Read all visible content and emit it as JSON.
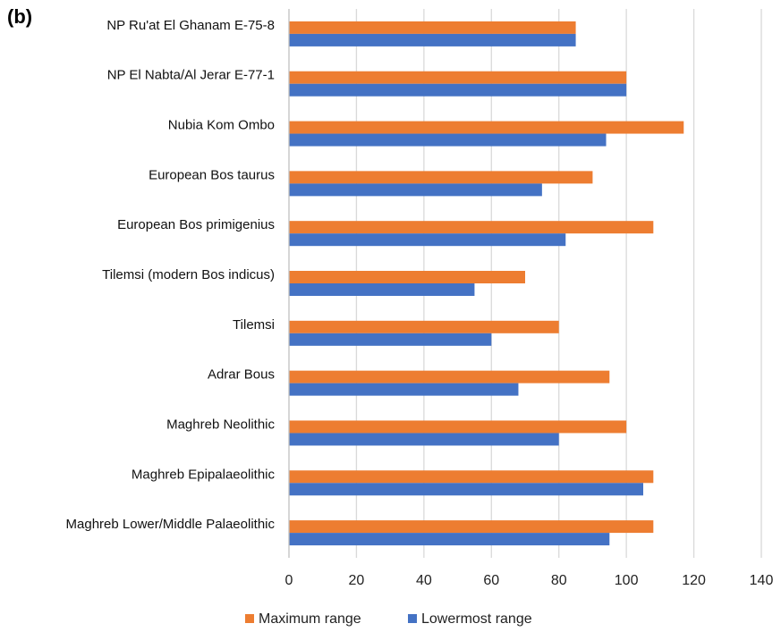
{
  "panel_label": "(b)",
  "colors": {
    "maximum": "#ED7D31",
    "lowermost": "#4472C4",
    "grid": "#d9d9d9",
    "axis": "#bfbfbf"
  },
  "chart_data": {
    "type": "bar",
    "orientation": "horizontal",
    "categories": [
      "NP Ru'at El Ghanam E-75-8",
      "NP El Nabta/Al Jerar E-77-1",
      "Nubia Kom Ombo",
      "European Bos taurus",
      "European Bos primigenius",
      "Tilemsi (modern Bos indicus)",
      "Tilemsi",
      "Adrar Bous",
      "Maghreb Neolithic",
      "Maghreb Epipalaeolithic",
      "Maghreb Lower/Middle Palaeolithic"
    ],
    "series": [
      {
        "name": "Maximum range",
        "values": [
          85,
          100,
          117,
          90,
          108,
          70,
          80,
          95,
          100,
          108,
          108
        ]
      },
      {
        "name": "Lowermost range",
        "values": [
          85,
          100,
          94,
          75,
          82,
          55,
          60,
          68,
          80,
          105,
          95
        ]
      }
    ],
    "xlim": [
      0,
      140
    ],
    "xticks": [
      0,
      20,
      40,
      60,
      80,
      100,
      120,
      140
    ],
    "title": "",
    "xlabel": "",
    "ylabel": "",
    "grid": true,
    "legend": "bottom"
  }
}
